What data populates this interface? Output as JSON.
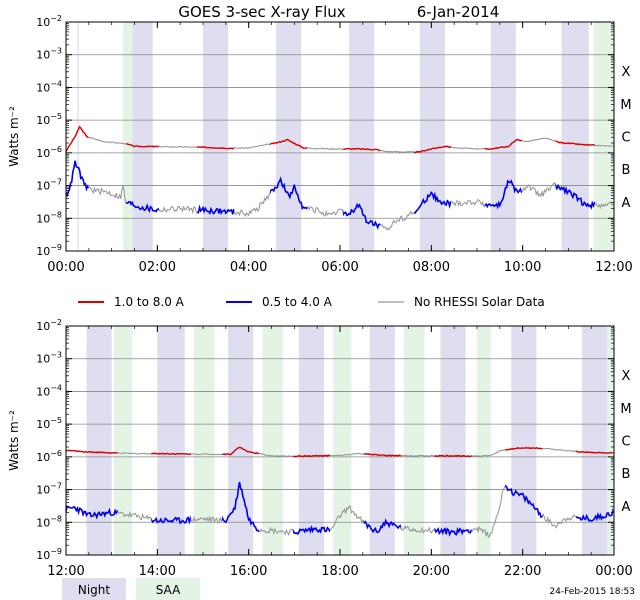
{
  "title": "GOES 3-sec X-ray Flux",
  "date": "6-Jan-2014",
  "footer_timestamp": "24-Feb-2015 18:53",
  "colors": {
    "long_channel": "#dd0000",
    "short_channel": "#0000ee",
    "no_data": "#999999",
    "night": "#dedef0",
    "saa": "#e4f4e4",
    "grid": "#888888"
  },
  "legend": {
    "entries": [
      {
        "label": "1.0 to 8.0 A",
        "color": "#dd0000"
      },
      {
        "label": "0.5 to 4.0 A",
        "color": "#0000ee"
      },
      {
        "label": "No RHESSI Solar Data",
        "color": "#999999"
      }
    ],
    "bands": [
      {
        "label": "Night",
        "color": "#dedef0"
      },
      {
        "label": "SAA",
        "color": "#e4f4e4"
      }
    ]
  },
  "chart_data": [
    {
      "type": "line",
      "title": "GOES 3-sec X-ray Flux    6-Jan-2014",
      "ylabel": "Watts m⁻²",
      "yscale": "log",
      "ylim_exp": [
        -9,
        -2
      ],
      "y_tick_exponents": [
        -9,
        -8,
        -7,
        -6,
        -5,
        -4,
        -3,
        -2
      ],
      "flare_classes": [
        {
          "label": "A",
          "exp": -8
        },
        {
          "label": "B",
          "exp": -7
        },
        {
          "label": "C",
          "exp": -6
        },
        {
          "label": "M",
          "exp": -5
        },
        {
          "label": "X",
          "exp": -4
        }
      ],
      "xlim_hours": [
        0,
        12
      ],
      "x_tick_labels": [
        "00:00",
        "02:00",
        "04:00",
        "06:00",
        "08:00",
        "10:00",
        "12:00"
      ],
      "night_bands_hours": [
        [
          0.25,
          0.28
        ],
        [
          1.45,
          1.9
        ],
        [
          3.0,
          3.55
        ],
        [
          4.6,
          5.15
        ],
        [
          6.2,
          6.75
        ],
        [
          7.75,
          8.3
        ],
        [
          9.3,
          9.85
        ],
        [
          10.85,
          11.45
        ]
      ],
      "saa_bands_hours": [
        [
          1.25,
          1.45
        ],
        [
          11.55,
          12.0
        ]
      ],
      "series": [
        {
          "name": "1.0 to 8.0 A",
          "points": [
            [
              0.0,
              -5.95
            ],
            [
              0.2,
              -5.5
            ],
            [
              0.3,
              -5.2
            ],
            [
              0.45,
              -5.5
            ],
            [
              0.8,
              -5.65
            ],
            [
              1.3,
              -5.72
            ],
            [
              1.5,
              -5.8
            ],
            [
              2.5,
              -5.82
            ],
            [
              3.0,
              -5.83
            ],
            [
              3.6,
              -5.86
            ],
            [
              4.0,
              -5.85
            ],
            [
              4.6,
              -5.7
            ],
            [
              4.85,
              -5.6
            ],
            [
              5.2,
              -5.85
            ],
            [
              5.8,
              -5.88
            ],
            [
              6.4,
              -5.88
            ],
            [
              6.8,
              -5.9
            ],
            [
              7.0,
              -5.96
            ],
            [
              7.7,
              -5.98
            ],
            [
              8.0,
              -5.88
            ],
            [
              8.3,
              -5.8
            ],
            [
              8.6,
              -5.86
            ],
            [
              9.3,
              -5.88
            ],
            [
              9.7,
              -5.8
            ],
            [
              9.85,
              -5.6
            ],
            [
              10.1,
              -5.65
            ],
            [
              10.5,
              -5.55
            ],
            [
              10.8,
              -5.68
            ],
            [
              11.3,
              -5.75
            ],
            [
              11.7,
              -5.78
            ],
            [
              12.0,
              -5.8
            ]
          ]
        },
        {
          "name": "0.5 to 4.0 A",
          "points": [
            [
              0.0,
              -7.3
            ],
            [
              0.1,
              -7.0
            ],
            [
              0.2,
              -6.3
            ],
            [
              0.3,
              -6.6
            ],
            [
              0.4,
              -7.0
            ],
            [
              0.6,
              -7.15
            ],
            [
              0.9,
              -7.2
            ],
            [
              1.2,
              -7.35
            ],
            [
              1.25,
              -7.0
            ],
            [
              1.3,
              -7.5
            ],
            [
              1.6,
              -7.65
            ],
            [
              2.0,
              -7.75
            ],
            [
              2.5,
              -7.7
            ],
            [
              3.0,
              -7.75
            ],
            [
              3.6,
              -7.8
            ],
            [
              4.0,
              -7.85
            ],
            [
              4.2,
              -7.7
            ],
            [
              4.5,
              -7.2
            ],
            [
              4.7,
              -6.85
            ],
            [
              4.9,
              -7.4
            ],
            [
              5.0,
              -7.0
            ],
            [
              5.2,
              -7.7
            ],
            [
              5.5,
              -7.75
            ],
            [
              5.8,
              -7.95
            ],
            [
              6.0,
              -7.75
            ],
            [
              6.2,
              -7.9
            ],
            [
              6.4,
              -7.6
            ],
            [
              6.6,
              -8.1
            ],
            [
              6.8,
              -8.2
            ],
            [
              7.0,
              -8.35
            ],
            [
              7.2,
              -8.1
            ],
            [
              7.5,
              -7.9
            ],
            [
              7.7,
              -7.75
            ],
            [
              8.0,
              -7.2
            ],
            [
              8.2,
              -7.55
            ],
            [
              8.5,
              -7.55
            ],
            [
              9.0,
              -7.5
            ],
            [
              9.3,
              -7.6
            ],
            [
              9.5,
              -7.6
            ],
            [
              9.7,
              -6.85
            ],
            [
              9.9,
              -7.25
            ],
            [
              10.1,
              -7.0
            ],
            [
              10.25,
              -7.15
            ],
            [
              10.4,
              -7.3
            ],
            [
              10.7,
              -7.0
            ],
            [
              11.0,
              -7.2
            ],
            [
              11.3,
              -7.5
            ],
            [
              11.5,
              -7.6
            ],
            [
              12.0,
              -7.55
            ]
          ]
        }
      ]
    },
    {
      "type": "line",
      "title": "",
      "ylabel": "Watts m⁻²",
      "yscale": "log",
      "ylim_exp": [
        -9,
        -2
      ],
      "y_tick_exponents": [
        -9,
        -8,
        -7,
        -6,
        -5,
        -4,
        -3,
        -2
      ],
      "flare_classes": [
        {
          "label": "A",
          "exp": -8
        },
        {
          "label": "B",
          "exp": -7
        },
        {
          "label": "C",
          "exp": -6
        },
        {
          "label": "M",
          "exp": -5
        },
        {
          "label": "X",
          "exp": -4
        }
      ],
      "xlim_hours": [
        12,
        24
      ],
      "x_tick_labels": [
        "12:00",
        "14:00",
        "16:00",
        "18:00",
        "20:00",
        "22:00",
        "00:00"
      ],
      "night_bands_hours": [
        [
          12.45,
          13.0
        ],
        [
          14.0,
          14.6
        ],
        [
          15.55,
          16.1
        ],
        [
          17.1,
          17.65
        ],
        [
          18.65,
          19.2
        ],
        [
          20.2,
          20.75
        ],
        [
          21.75,
          22.3
        ],
        [
          23.3,
          23.85
        ]
      ],
      "saa_bands_hours": [
        [
          13.05,
          13.45
        ],
        [
          14.8,
          15.25
        ],
        [
          16.3,
          16.75
        ],
        [
          17.85,
          18.25
        ],
        [
          19.4,
          19.85
        ],
        [
          21.0,
          21.3
        ],
        [
          23.85,
          24.0
        ]
      ],
      "series": [
        {
          "name": "1.0 to 8.0 A",
          "points": [
            [
              12.0,
              -5.8
            ],
            [
              12.5,
              -5.85
            ],
            [
              13.0,
              -5.88
            ],
            [
              13.5,
              -5.9
            ],
            [
              14.0,
              -5.9
            ],
            [
              15.0,
              -5.92
            ],
            [
              15.6,
              -5.92
            ],
            [
              15.8,
              -5.7
            ],
            [
              16.0,
              -5.85
            ],
            [
              16.5,
              -5.97
            ],
            [
              17.0,
              -5.98
            ],
            [
              18.0,
              -5.96
            ],
            [
              18.4,
              -5.9
            ],
            [
              19.0,
              -5.96
            ],
            [
              20.0,
              -5.97
            ],
            [
              21.0,
              -5.97
            ],
            [
              21.3,
              -5.96
            ],
            [
              21.5,
              -5.82
            ],
            [
              21.8,
              -5.75
            ],
            [
              22.0,
              -5.72
            ],
            [
              22.5,
              -5.75
            ],
            [
              23.0,
              -5.82
            ],
            [
              23.5,
              -5.87
            ],
            [
              24.0,
              -5.88
            ]
          ]
        },
        {
          "name": "0.5 to 4.0 A",
          "points": [
            [
              12.0,
              -7.6
            ],
            [
              12.2,
              -7.55
            ],
            [
              12.5,
              -7.8
            ],
            [
              13.0,
              -7.7
            ],
            [
              13.5,
              -7.8
            ],
            [
              14.0,
              -7.95
            ],
            [
              14.5,
              -7.95
            ],
            [
              15.0,
              -7.9
            ],
            [
              15.5,
              -7.95
            ],
            [
              15.7,
              -7.55
            ],
            [
              15.8,
              -6.8
            ],
            [
              15.9,
              -7.3
            ],
            [
              16.0,
              -7.9
            ],
            [
              16.2,
              -8.2
            ],
            [
              16.5,
              -8.25
            ],
            [
              17.0,
              -8.3
            ],
            [
              17.5,
              -8.2
            ],
            [
              17.8,
              -8.25
            ],
            [
              18.0,
              -7.8
            ],
            [
              18.2,
              -7.55
            ],
            [
              18.5,
              -8.0
            ],
            [
              18.8,
              -8.3
            ],
            [
              19.0,
              -8.0
            ],
            [
              19.4,
              -8.2
            ],
            [
              20.0,
              -8.25
            ],
            [
              20.5,
              -8.3
            ],
            [
              21.0,
              -8.2
            ],
            [
              21.3,
              -8.4
            ],
            [
              21.5,
              -7.5
            ],
            [
              21.6,
              -6.85
            ],
            [
              21.8,
              -7.1
            ],
            [
              22.0,
              -7.2
            ],
            [
              22.3,
              -7.6
            ],
            [
              22.5,
              -7.9
            ],
            [
              22.7,
              -8.1
            ],
            [
              23.0,
              -7.85
            ],
            [
              23.5,
              -7.9
            ],
            [
              24.0,
              -7.7
            ]
          ]
        }
      ]
    }
  ]
}
